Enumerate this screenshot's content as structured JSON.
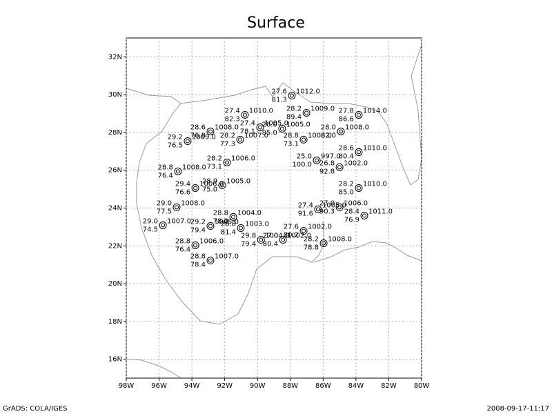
{
  "title": "Surface",
  "lon_range": [
    -98,
    -80
  ],
  "lat_range": [
    15,
    33
  ],
  "lon_ticks": [
    {
      "value": -98,
      "label": "98W"
    },
    {
      "value": -96,
      "label": "96W"
    },
    {
      "value": -94,
      "label": "94W"
    },
    {
      "value": -92,
      "label": "92W"
    },
    {
      "value": -90,
      "label": "90W"
    },
    {
      "value": -88,
      "label": "88W"
    },
    {
      "value": -86,
      "label": "86W"
    },
    {
      "value": -84,
      "label": "84W"
    },
    {
      "value": -82,
      "label": "82W"
    },
    {
      "value": -80,
      "label": "80W"
    }
  ],
  "lat_ticks": [
    {
      "value": 16,
      "label": "16N"
    },
    {
      "value": 18,
      "label": "18N"
    },
    {
      "value": 20,
      "label": "20N"
    },
    {
      "value": 22,
      "label": "22N"
    },
    {
      "value": 24,
      "label": "24N"
    },
    {
      "value": 26,
      "label": "26N"
    },
    {
      "value": 28,
      "label": "28N"
    },
    {
      "value": 30,
      "label": "30N"
    },
    {
      "value": 32,
      "label": "32N"
    }
  ],
  "stations": [
    {
      "lon": -87.91,
      "lat": 29.95,
      "temperature": "27.6",
      "dewpoint": "81.3",
      "pressure": "1012.0"
    },
    {
      "lon": -90.77,
      "lat": 28.93,
      "temperature": "27.4",
      "dewpoint": "82.3",
      "pressure": "1010.0"
    },
    {
      "lon": -87.02,
      "lat": 29.04,
      "temperature": "28.2",
      "dewpoint": "89.4",
      "pressure": "1009.0"
    },
    {
      "lon": -83.83,
      "lat": 28.93,
      "temperature": "27.8",
      "dewpoint": "86.6",
      "pressure": "1014.0"
    },
    {
      "lon": -92.87,
      "lat": 28.05,
      "temperature": "28.6",
      "dewpoint": "76.8",
      "pressure": "1008.0"
    },
    {
      "lon": -89.84,
      "lat": 28.27,
      "temperature": "27.4",
      "dewpoint": "78.1",
      "pressure": "1005.0"
    },
    {
      "lon": -88.5,
      "lat": 28.2,
      "temperature": "28.0",
      "dewpoint": "85.0",
      "pressure": "1005.0"
    },
    {
      "lon": -91.06,
      "lat": 27.62,
      "temperature": "28.2",
      "dewpoint": "77.3",
      "pressure": "1007.0"
    },
    {
      "lon": -94.26,
      "lat": 27.54,
      "temperature": "29.2",
      "dewpoint": "76.5",
      "pressure": "1009.0"
    },
    {
      "lon": -87.19,
      "lat": 27.62,
      "temperature": "28.8",
      "dewpoint": "73.1",
      "pressure": "1008.0"
    },
    {
      "lon": -84.92,
      "lat": 28.05,
      "temperature": "28.0",
      "dewpoint": "82.0",
      "pressure": "1008.0"
    },
    {
      "lon": -83.83,
      "lat": 26.96,
      "temperature": "28.6",
      "dewpoint": "80.4",
      "pressure": "1010.0"
    },
    {
      "lon": -86.39,
      "lat": 26.52,
      "temperature": "25.0",
      "dewpoint": "100.0",
      "pressure": "997.0"
    },
    {
      "lon": -85.0,
      "lat": 26.16,
      "temperature": "26.8",
      "dewpoint": "92.8",
      "pressure": "1002.0"
    },
    {
      "lon": -91.86,
      "lat": 26.41,
      "temperature": "28.2",
      "dewpoint": "73.1",
      "pressure": "1006.0"
    },
    {
      "lon": -94.85,
      "lat": 25.94,
      "temperature": "28.8",
      "dewpoint": "76.4",
      "pressure": "1008.0"
    },
    {
      "lon": -92.15,
      "lat": 25.21,
      "temperature": "28.9",
      "dewpoint": "75.0",
      "pressure": "1005.0"
    },
    {
      "lon": -93.79,
      "lat": 25.06,
      "temperature": "29.4",
      "dewpoint": "76.6",
      "pressure": "1006.0"
    },
    {
      "lon": -83.83,
      "lat": 25.06,
      "temperature": "28.2",
      "dewpoint": "85.0",
      "pressure": "1010.0"
    },
    {
      "lon": -94.93,
      "lat": 24.04,
      "temperature": "29.0",
      "dewpoint": "77.5",
      "pressure": "1008.0"
    },
    {
      "lon": -91.48,
      "lat": 23.53,
      "temperature": "28.8",
      "dewpoint": "78.0",
      "pressure": "1004.0"
    },
    {
      "lon": -95.77,
      "lat": 23.09,
      "temperature": "29.0",
      "dewpoint": "74.5",
      "pressure": "1007.0"
    },
    {
      "lon": -92.87,
      "lat": 23.05,
      "temperature": "29.2",
      "dewpoint": "79.4",
      "pressure": "1005.0"
    },
    {
      "lon": -91.02,
      "lat": 22.94,
      "temperature": "28.8",
      "dewpoint": "81.4",
      "pressure": "1003.0"
    },
    {
      "lon": -86.31,
      "lat": 23.93,
      "temperature": "27.4",
      "dewpoint": "91.6",
      "pressure": "1005.0"
    },
    {
      "lon": -85.0,
      "lat": 24.04,
      "temperature": "27.0",
      "dewpoint": "90.3",
      "pressure": "1006.0"
    },
    {
      "lon": -83.49,
      "lat": 23.6,
      "temperature": "28.4",
      "dewpoint": "76.9",
      "pressure": "1011.0"
    },
    {
      "lon": -87.19,
      "lat": 22.79,
      "temperature": "27.6",
      "dewpoint": "80.2",
      "pressure": "1002.0"
    },
    {
      "lon": -89.79,
      "lat": 22.32,
      "temperature": "29.8",
      "dewpoint": "79.4",
      "pressure": "1004.0"
    },
    {
      "lon": -88.45,
      "lat": 22.32,
      "temperature": "27.0",
      "dewpoint": "80.4",
      "pressure": "1002.0"
    },
    {
      "lon": -85.97,
      "lat": 22.14,
      "temperature": "28.2",
      "dewpoint": "78.8",
      "pressure": "1008.0"
    },
    {
      "lon": -93.79,
      "lat": 22.03,
      "temperature": "28.8",
      "dewpoint": "76.4",
      "pressure": "1006.0"
    },
    {
      "lon": -92.87,
      "lat": 21.22,
      "temperature": "28.8",
      "dewpoint": "78.4",
      "pressure": "1007.0"
    }
  ],
  "footer": {
    "left": "GrADS: COLA/IGES",
    "right": "2008-09-17-11:17"
  }
}
